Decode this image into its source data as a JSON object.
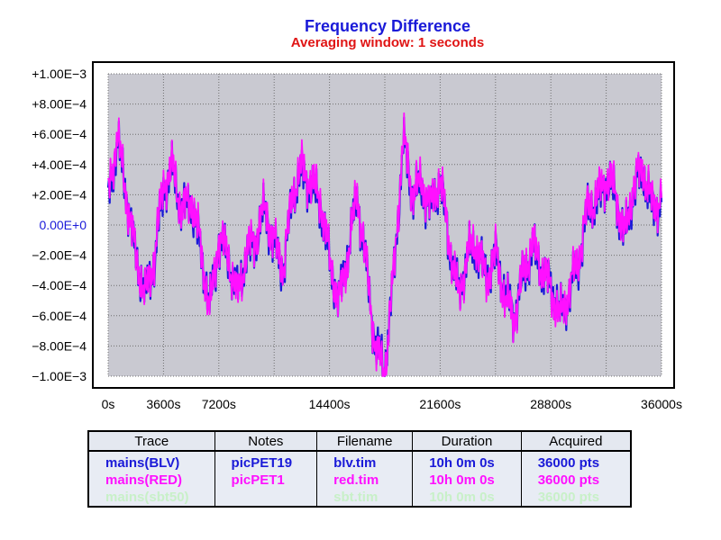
{
  "chart_data": {
    "type": "line",
    "title": "Frequency Difference",
    "subtitle": "Averaging window: 1 seconds",
    "xlim": [
      0,
      36000
    ],
    "ylim": [
      -0.001,
      0.001
    ],
    "x_ticks": [
      "0s",
      "3600s",
      "7200s",
      "14400s",
      "21600s",
      "28800s",
      "36000s"
    ],
    "y_ticks": [
      "+1.00E−3",
      "+8.00E−4",
      "+6.00E−4",
      "+4.00E−4",
      "+2.00E−4",
      "0.00E+0",
      "−2.00E−4",
      "−4.00E−4",
      "−6.00E−4",
      "−8.00E−4",
      "−1.00E−3"
    ],
    "grid": true,
    "series": [
      {
        "name": "mains(BLV)",
        "color": "#1a1ad8",
        "x": [
          0,
          600,
          1200,
          1800,
          2400,
          3000,
          3600,
          4200,
          4800,
          5400,
          6000,
          6600,
          7200,
          7800,
          8400,
          9000,
          9600,
          10200,
          10800,
          11400,
          12000,
          12600,
          13200,
          13800,
          14400,
          15000,
          15600,
          16200,
          16800,
          17400,
          18000,
          18600,
          19200,
          19800,
          20400,
          21000,
          21600,
          22200,
          22800,
          23400,
          24000,
          24600,
          25200,
          25800,
          26400,
          27000,
          27600,
          28200,
          28800,
          29400,
          30000,
          30600,
          31200,
          31800,
          32400,
          33000,
          33600,
          34200,
          34800,
          35400,
          36000
        ],
        "values": [
          0.00018,
          0.00055,
          0.0002,
          -0.00022,
          -0.00045,
          -0.00025,
          0.00025,
          0.00035,
          0.0001,
          0.00015,
          -0.00015,
          -0.00055,
          -0.0001,
          -0.00022,
          -0.00045,
          -0.0002,
          -0.0001,
          0.0001,
          -0.00015,
          -0.0003,
          0.0002,
          0.00035,
          0.00025,
          0.00015,
          -0.00025,
          -0.0005,
          -0.00018,
          0.0002,
          -0.0003,
          -0.0008,
          -0.00095,
          -0.0003,
          0.00055,
          0.0002,
          0.00025,
          0.0001,
          0.0003,
          -0.00015,
          -0.00045,
          -0.0002,
          -0.00015,
          -0.00035,
          -0.0002,
          -0.00045,
          -0.0006,
          -0.00035,
          -0.00015,
          -0.0003,
          -0.0004,
          -0.0006,
          -0.00045,
          -0.00025,
          0.0001,
          0.00015,
          0.0003,
          0.0002,
          -0.0001,
          0.00025,
          0.00035,
          0.0001,
          0.00015
        ]
      },
      {
        "name": "mains(RED)",
        "color": "#ff10ff",
        "x": [
          0,
          600,
          1200,
          1800,
          2400,
          3000,
          3600,
          4200,
          4800,
          5400,
          6000,
          6600,
          7200,
          7800,
          8400,
          9000,
          9600,
          10200,
          10800,
          11400,
          12000,
          12600,
          13200,
          13800,
          14400,
          15000,
          15600,
          16200,
          16800,
          17400,
          18000,
          18600,
          19200,
          19800,
          20400,
          21000,
          21600,
          22200,
          22800,
          23400,
          24000,
          24600,
          25200,
          25800,
          26400,
          27000,
          27600,
          28200,
          28800,
          29400,
          30000,
          30600,
          31200,
          31800,
          32400,
          33000,
          33600,
          34200,
          34800,
          35400,
          36000
        ],
        "values": [
          0.0002,
          0.0006,
          0.00018,
          -0.0002,
          -0.00047,
          -0.00022,
          0.00028,
          0.00038,
          8e-05,
          0.00018,
          -0.00012,
          -0.00058,
          -8e-05,
          -0.0002,
          -0.00048,
          -0.00018,
          -8e-05,
          0.00012,
          -0.00012,
          -0.00028,
          0.00022,
          0.00038,
          0.00028,
          0.00018,
          -0.00022,
          -0.00052,
          -0.0002,
          0.00022,
          -0.00028,
          -0.00082,
          -0.00098,
          -0.00028,
          0.00058,
          0.00022,
          0.00028,
          0.00012,
          0.00032,
          -0.00012,
          -0.00048,
          -0.00018,
          -0.00012,
          -0.00038,
          -0.00018,
          -0.00048,
          -0.00062,
          -0.00032,
          -0.00012,
          -0.00028,
          -0.00042,
          -0.00062,
          -0.00042,
          -0.00022,
          0.00012,
          0.00018,
          0.00032,
          0.00022,
          -8e-05,
          0.00028,
          0.00038,
          0.00012,
          0.00018
        ]
      }
    ]
  },
  "legend": {
    "headers": [
      "Trace",
      "Notes",
      "Filename",
      "Duration",
      "Acquired"
    ],
    "rows": [
      {
        "trace": "mains(BLV)",
        "notes": "picPET19",
        "filename": "blv.tim",
        "duration": "10h 0m 0s",
        "acquired": "36000 pts",
        "color": "#1a1ad8"
      },
      {
        "trace": "mains(RED)",
        "notes": "picPET1",
        "filename": "red.tim",
        "duration": "10h 0m 0s",
        "acquired": "36000 pts",
        "color": "#ff10ff"
      },
      {
        "trace": "mains(sbt50)",
        "notes": "",
        "filename": "sbt.tim",
        "duration": "10h 0m 0s",
        "acquired": "36000 pts",
        "color": "#c8f0c8"
      }
    ]
  }
}
